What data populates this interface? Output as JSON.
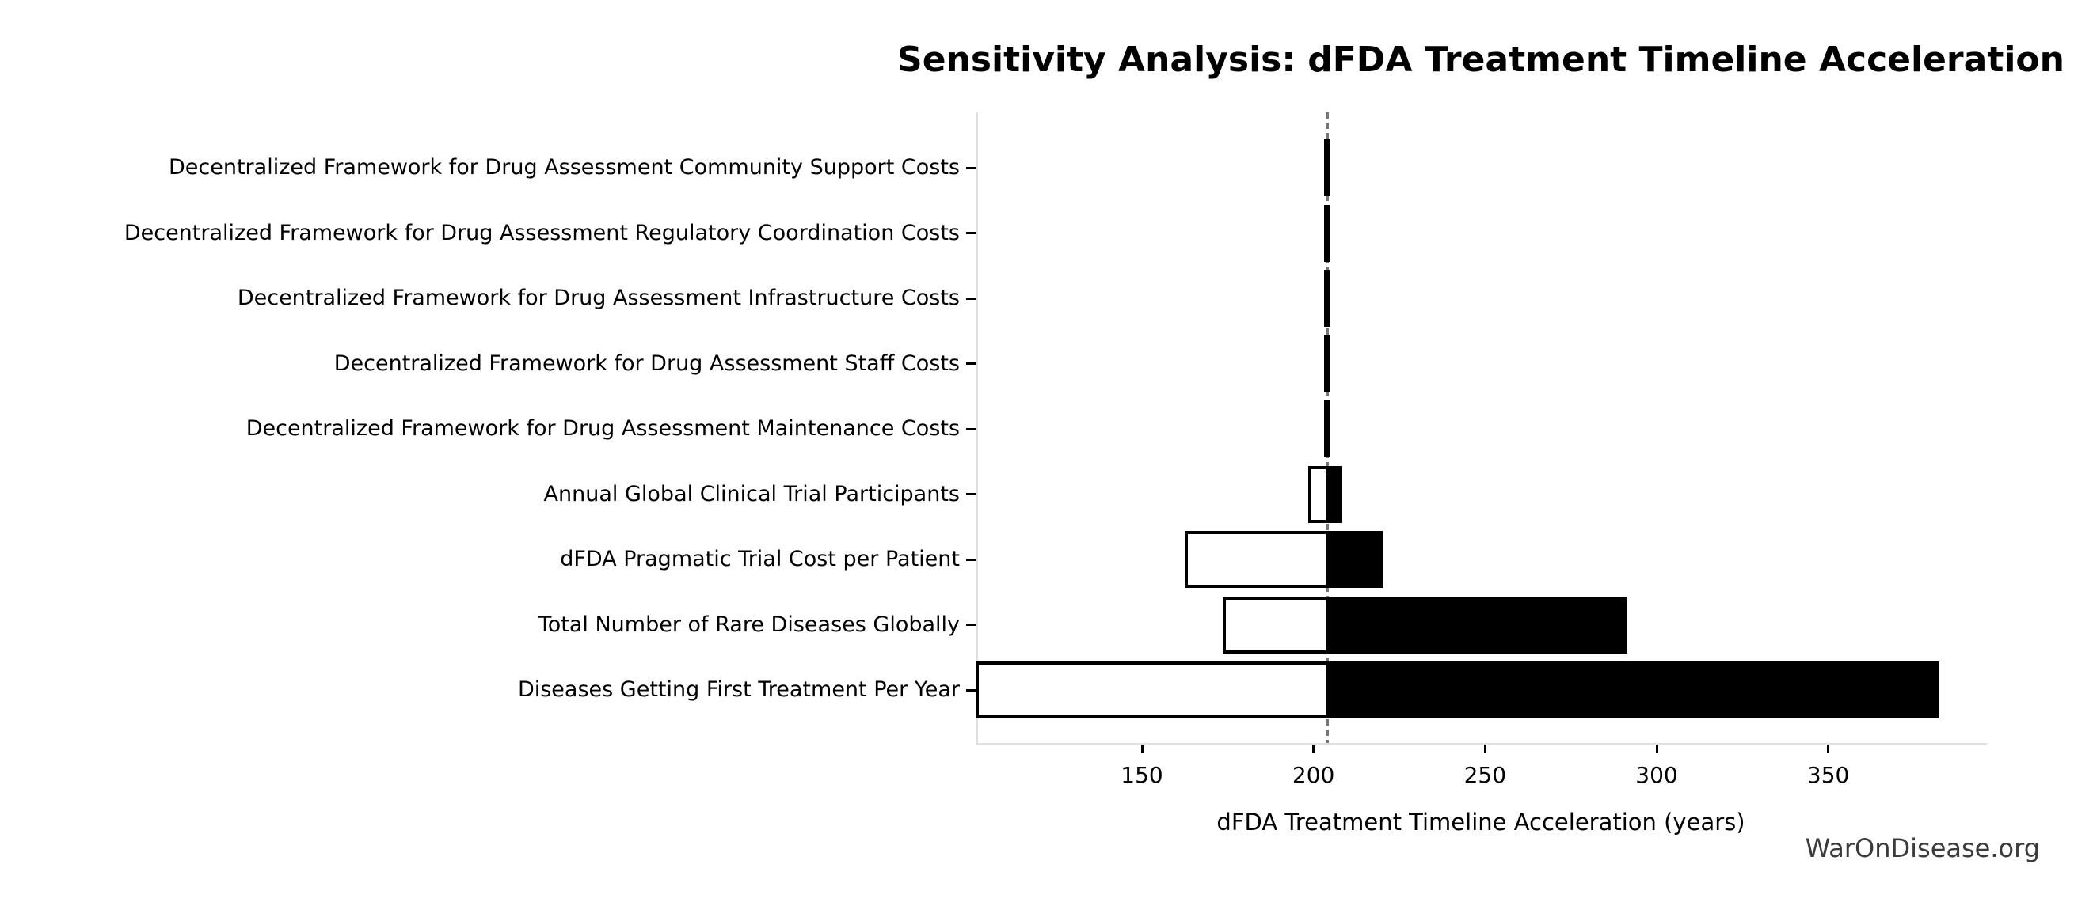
{
  "title": "Sensitivity Analysis: dFDA Treatment Timeline Acceleration",
  "watermark": "WarOnDisease.org",
  "chart_data": {
    "type": "bar",
    "variant": "tornado-sensitivity",
    "orientation": "horizontal",
    "title": "Sensitivity Analysis: dFDA Treatment Timeline Acceleration",
    "xlabel": "dFDA Treatment Timeline Acceleration (years)",
    "ylabel": "",
    "baseline": 204,
    "xlim": [
      102,
      396
    ],
    "xticks": [
      150,
      200,
      250,
      300,
      350
    ],
    "grid": false,
    "legend": false,
    "bar_style": {
      "low_fill": "#ffffff",
      "high_fill": "#000000",
      "edge_color": "#000000",
      "baseline_line_color": "#757575",
      "axis_color": "#e0e0e0"
    },
    "parameters": [
      {
        "label": "Decentralized Framework for Drug Assessment Community Support Costs",
        "low": 203.5,
        "high": 204.5
      },
      {
        "label": "Decentralized Framework for Drug Assessment Regulatory Coordination Costs",
        "low": 203.5,
        "high": 204.5
      },
      {
        "label": "Decentralized Framework for Drug Assessment Infrastructure Costs",
        "low": 203.5,
        "high": 204.5
      },
      {
        "label": "Decentralized Framework for Drug Assessment Staff Costs",
        "low": 203.5,
        "high": 204.5
      },
      {
        "label": "Decentralized Framework for Drug Assessment Maintenance Costs",
        "low": 203.5,
        "high": 204.5
      },
      {
        "label": "Annual Global Clinical Trial Participants",
        "low": 199,
        "high": 208
      },
      {
        "label": "dFDA Pragmatic Trial Cost per Patient",
        "low": 163,
        "high": 220
      },
      {
        "label": "Total Number of Rare Diseases Globally",
        "low": 174,
        "high": 291
      },
      {
        "label": "Diseases Getting First Treatment Per Year",
        "low": 102,
        "high": 382
      }
    ]
  }
}
